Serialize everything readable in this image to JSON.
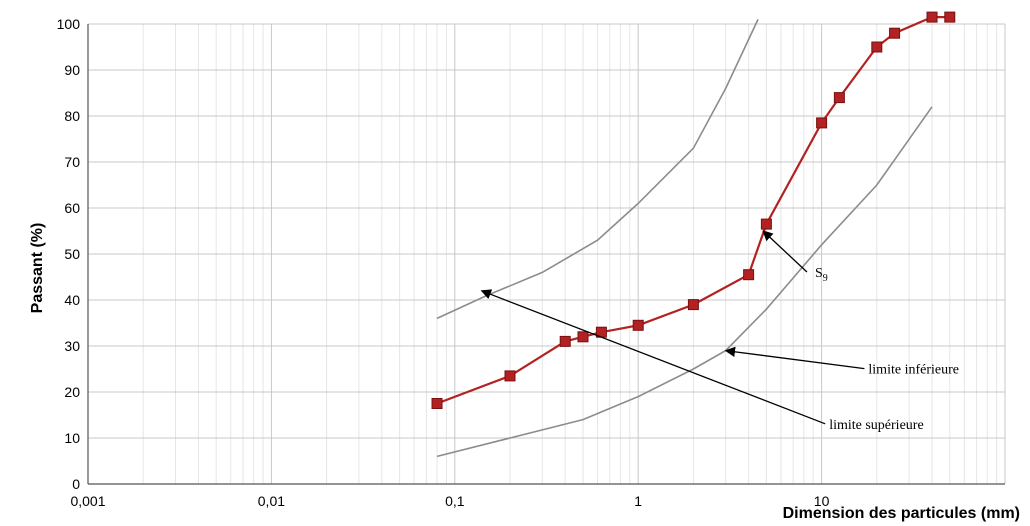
{
  "chart_data": {
    "type": "line",
    "xlabel": "Dimension des particules (mm)",
    "ylabel": "Passant (%)",
    "x_scale": "log",
    "xlim": [
      0.001,
      100
    ],
    "ylim": [
      0,
      100
    ],
    "x_ticks": [
      "0,001",
      "0,01",
      "0,1",
      "1",
      "10"
    ],
    "y_ticks": [
      "0",
      "10",
      "20",
      "30",
      "40",
      "50",
      "60",
      "70",
      "80",
      "90",
      "100"
    ],
    "grid": true,
    "colors": {
      "s9": "#b22222",
      "limits": "#8c8c8c",
      "arrow": "#000000"
    },
    "series": [
      {
        "name": "S9",
        "label_main": "S",
        "label_sub": "9",
        "markers": "square",
        "points": [
          [
            0.08,
            17.5
          ],
          [
            0.2,
            23.5
          ],
          [
            0.4,
            31
          ],
          [
            0.5,
            32
          ],
          [
            0.63,
            33
          ],
          [
            1,
            34.5
          ],
          [
            2,
            39
          ],
          [
            4,
            45.5
          ],
          [
            5,
            56.5
          ],
          [
            10,
            78.5
          ],
          [
            12.5,
            84
          ],
          [
            20,
            95
          ],
          [
            25,
            98
          ],
          [
            40,
            101.5
          ],
          [
            50,
            101.5
          ]
        ]
      },
      {
        "name": "limite inférieure",
        "markers": "none",
        "points": [
          [
            0.08,
            6
          ],
          [
            0.2,
            10
          ],
          [
            0.5,
            14
          ],
          [
            1,
            19
          ],
          [
            2,
            25
          ],
          [
            3,
            29
          ],
          [
            5,
            38
          ],
          [
            10,
            52
          ],
          [
            20,
            65
          ],
          [
            40,
            82
          ]
        ]
      },
      {
        "name": "limite supérieure",
        "markers": "none",
        "points": [
          [
            0.08,
            36
          ],
          [
            0.15,
            41
          ],
          [
            0.3,
            46
          ],
          [
            0.6,
            53
          ],
          [
            1,
            61
          ],
          [
            2,
            73
          ],
          [
            3,
            86
          ],
          [
            4.5,
            101
          ]
        ]
      }
    ],
    "annotations": [
      {
        "text": "S",
        "sub": "9",
        "target": [
          4.8,
          55
        ],
        "label_at": [
          9.2,
          45
        ]
      },
      {
        "text": "limite inférieure",
        "target": [
          3,
          29
        ],
        "label_at": [
          18,
          24
        ]
      },
      {
        "text": "limite supérieure",
        "target": [
          0.14,
          42
        ],
        "label_at": [
          11,
          12
        ]
      }
    ]
  }
}
